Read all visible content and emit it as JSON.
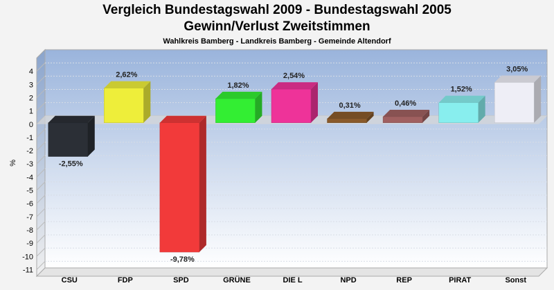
{
  "chart_data": {
    "type": "bar",
    "title": "Vergleich Bundestagswahl 2009 - Bundestagswahl 2005",
    "subtitle": "Gewinn/Verlust Zweitstimmen",
    "subtitle2": "Wahlkreis Bamberg - Landkreis Bamberg - Gemeinde Altendorf",
    "ylabel": "%",
    "ylim": [
      -11.5,
      5
    ],
    "yticks": [
      4,
      3,
      2,
      1,
      0,
      -1,
      -2,
      -3,
      -4,
      -5,
      -6,
      -7,
      -8,
      -9,
      -10,
      -11
    ],
    "categories": [
      "CSU",
      "FDP",
      "SPD",
      "GRÜNE",
      "DIE L",
      "NPD",
      "REP",
      "PIRAT",
      "Sonst"
    ],
    "values": [
      -2.55,
      2.62,
      -9.78,
      1.82,
      2.54,
      0.31,
      0.46,
      1.52,
      3.05
    ],
    "value_labels": [
      "-2,55%",
      "2,62%",
      "-9,78%",
      "1,82%",
      "2,54%",
      "0,31%",
      "0,46%",
      "1,52%",
      "3,05%"
    ],
    "colors": [
      "#2b2f36",
      "#eeee3a",
      "#f23a3a",
      "#33ee33",
      "#ee3399",
      "#8a5a2a",
      "#a06060",
      "#88eeee",
      "#eeeef6"
    ],
    "grid": true,
    "legend": "none"
  }
}
